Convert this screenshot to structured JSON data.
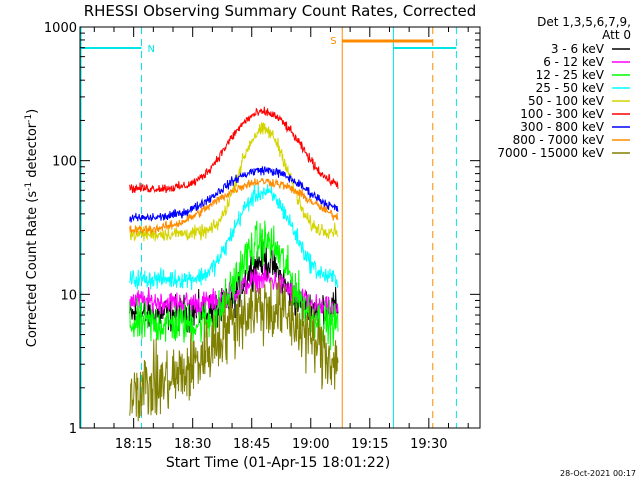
{
  "chart_data": {
    "type": "line",
    "title": "RHESSI Observing Summary Count Rates, Corrected",
    "xlabel": "Start Time (01-Apr-15 18:01:22)",
    "ylabel": "Corrected Count Rate (s⁻¹ detector⁻¹)",
    "ylabel_main": "Corrected Count Rate (s",
    "ylabel_sup1": "-1",
    "ylabel_mid": " detector",
    "ylabel_sup2": "-1",
    "ylabel_end": ")",
    "y_scale": "log",
    "ylim": [
      1,
      1000
    ],
    "xlim": [
      "18:01:22",
      "19:43:00"
    ],
    "x_ticks": [
      "18:15",
      "18:30",
      "18:45",
      "19:00",
      "19:15",
      "19:30"
    ],
    "y_ticks": [
      "1",
      "10",
      "100",
      "1000"
    ],
    "legend_title": "Det 1,3,5,6,7,9,",
    "legend_subtitle": "Att 0",
    "legend_position": "top-right",
    "footer_date": "28-Oct-2021 00:17",
    "colors": {
      "background": "#ffffff",
      "axes": "#000000",
      "night": "#00e5e5",
      "saa": "#ff8c00"
    },
    "data_range": [
      "18:14:00",
      "19:07:00"
    ],
    "flare_peak": "18:48:00",
    "series": [
      {
        "name": "3 - 6 keV",
        "color": "#000000",
        "pre": 7,
        "peak": 18,
        "post": 8,
        "width": 4.0,
        "noise": 0.15
      },
      {
        "name": "6 - 12 keV",
        "color": "#ff00ff",
        "pre": 9,
        "peak": 13,
        "post": 7.5,
        "width": 6.0,
        "noise": 0.1
      },
      {
        "name": "12 - 25 keV",
        "color": "#00ff00",
        "pre": 6,
        "peak": 25,
        "post": 6,
        "width": 5.0,
        "noise": 0.18
      },
      {
        "name": "25 - 50 keV",
        "color": "#00ffff",
        "pre": 13,
        "peak": 58,
        "post": 13,
        "width": 5.5,
        "noise": 0.08
      },
      {
        "name": "50 - 100 keV",
        "color": "#d4d400",
        "pre": 28,
        "peak": 170,
        "post": 30,
        "width": 4.5,
        "noise": 0.06
      },
      {
        "name": "100 - 300 keV",
        "color": "#ff0000",
        "pre": 62,
        "peak": 230,
        "post": 62,
        "width": 7.0,
        "noise": 0.04
      },
      {
        "name": "300 - 800 keV",
        "color": "#0000ff",
        "pre": 37,
        "peak": 85,
        "post": 38,
        "width": 9.0,
        "noise": 0.04
      },
      {
        "name": "800 - 7000 keV",
        "color": "#ff8c00",
        "pre": 30,
        "peak": 70,
        "post": 31,
        "width": 10.0,
        "noise": 0.04
      },
      {
        "name": "7000 - 15000 keV",
        "color": "#808000",
        "pre": 2,
        "peak": 8,
        "post": 2.5,
        "width": 9.0,
        "noise": 0.3
      }
    ],
    "night_intervals": [
      {
        "start": "18:01:22",
        "end": "18:17:00",
        "label": "N"
      },
      {
        "start": "19:21:00",
        "end": "19:37:00",
        "label": ""
      }
    ],
    "saa_interval": {
      "start": "19:08:00",
      "end": "19:31:00",
      "label": "S"
    }
  }
}
